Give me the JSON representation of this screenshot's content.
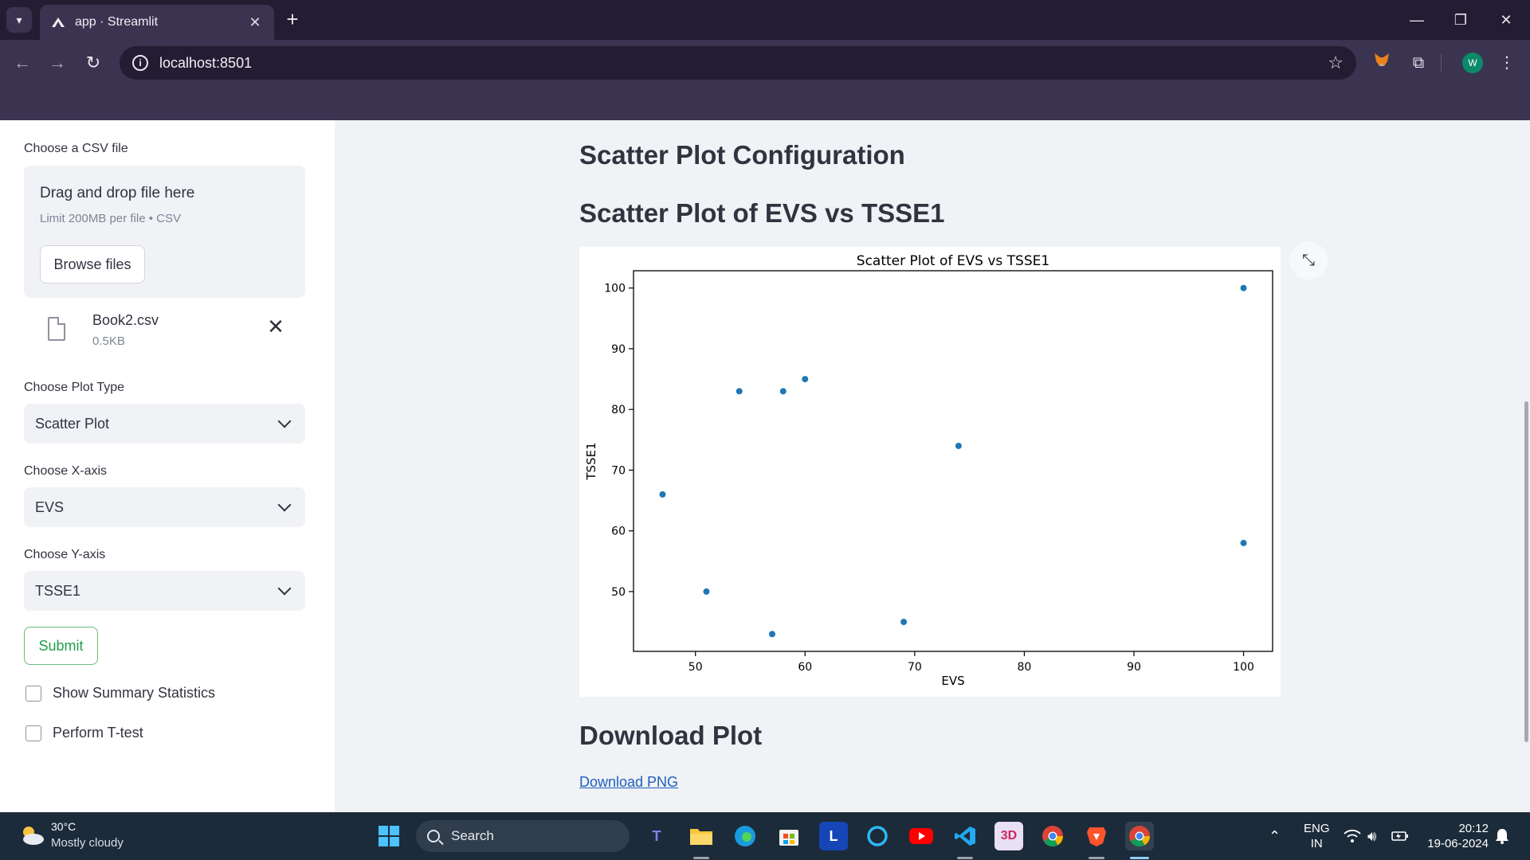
{
  "browser": {
    "tab_title": "app · Streamlit",
    "url": "localhost:8501",
    "profile_initial": "W"
  },
  "sidebar": {
    "upload_label": "Choose a CSV file",
    "dropzone_title": "Drag and drop file here",
    "dropzone_limit": "Limit 200MB per file • CSV",
    "browse_label": "Browse files",
    "file_name": "Book2.csv",
    "file_size": "0.5KB",
    "plot_type_label": "Choose Plot Type",
    "plot_type_value": "Scatter Plot",
    "x_axis_label": "Choose X-axis",
    "x_axis_value": "EVS",
    "y_axis_label": "Choose Y-axis",
    "y_axis_value": "TSSE1",
    "submit_label": "Submit",
    "check_summary": "Show Summary Statistics",
    "check_ttest": "Perform T-test"
  },
  "main": {
    "heading_config": "Scatter Plot Configuration",
    "heading_plot": "Scatter Plot of EVS vs TSSE1",
    "heading_download": "Download Plot",
    "download_link": "Download PNG"
  },
  "chart_data": {
    "type": "scatter",
    "title": "Scatter Plot of EVS vs TSSE1",
    "xlabel": "EVS",
    "ylabel": "TSSE1",
    "xlim": [
      44.35,
      102.65
    ],
    "ylim": [
      40.15,
      102.85
    ],
    "x_ticks": [
      50,
      60,
      70,
      80,
      90,
      100
    ],
    "y_ticks": [
      50,
      60,
      70,
      80,
      90,
      100
    ],
    "grid": false,
    "color": "#1f77b4",
    "points": [
      {
        "x": 47,
        "y": 66
      },
      {
        "x": 51,
        "y": 50
      },
      {
        "x": 54,
        "y": 83
      },
      {
        "x": 57,
        "y": 43
      },
      {
        "x": 58,
        "y": 83
      },
      {
        "x": 60,
        "y": 85
      },
      {
        "x": 69,
        "y": 45
      },
      {
        "x": 74,
        "y": 74
      },
      {
        "x": 100,
        "y": 100
      },
      {
        "x": 100,
        "y": 58
      }
    ]
  },
  "taskbar": {
    "weather_temp": "30°C",
    "weather_desc": "Mostly cloudy",
    "search_placeholder": "Search",
    "lang_top": "ENG",
    "lang_bottom": "IN",
    "time": "20:12",
    "date": "19-06-2024"
  }
}
